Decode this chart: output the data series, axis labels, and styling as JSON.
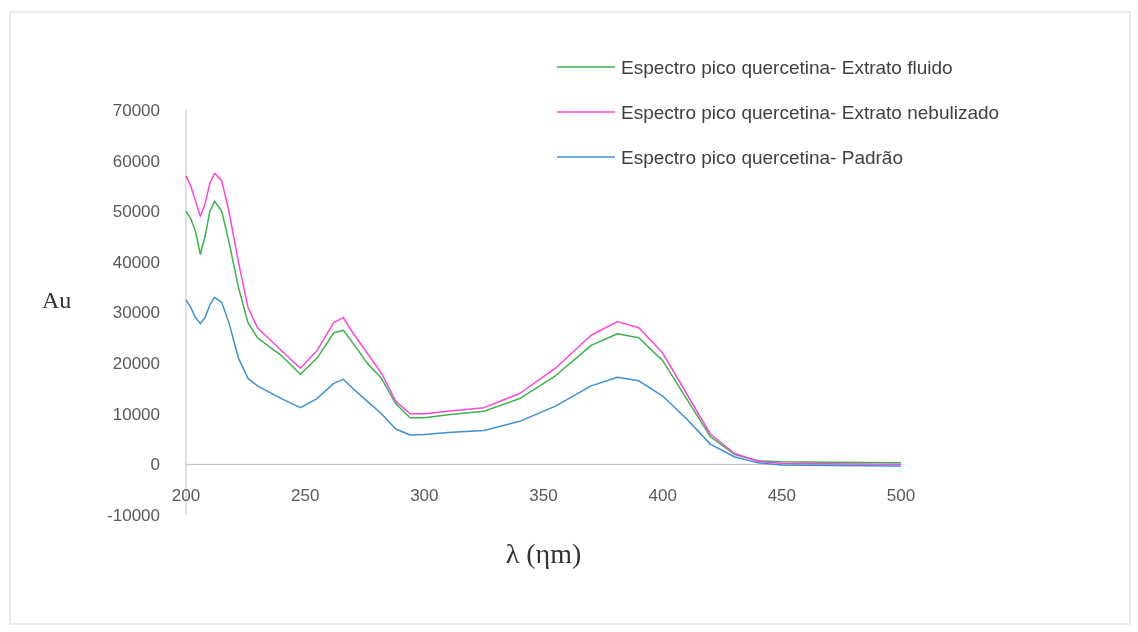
{
  "chart_data": {
    "type": "line",
    "xlabel": "λ (ηm)",
    "ylabel": "Au",
    "xlim": [
      200,
      500
    ],
    "xticks": [
      200,
      250,
      300,
      350,
      400,
      450,
      500
    ],
    "ylim": [
      -10000,
      70000
    ],
    "yticks": [
      -10000,
      0,
      10000,
      20000,
      30000,
      40000,
      50000,
      60000,
      70000
    ],
    "grid": false,
    "legend": "top right",
    "marker": "none",
    "line_style": "solid",
    "x": [
      200,
      202,
      204,
      206,
      208,
      210,
      212,
      215,
      218,
      222,
      226,
      230,
      240,
      248,
      255,
      262,
      266,
      270,
      276,
      282,
      288,
      294,
      300,
      310,
      325,
      340,
      355,
      370,
      381,
      390,
      400,
      410,
      420,
      430,
      440,
      450,
      470,
      500
    ],
    "series": [
      {
        "name": "Espectro pico quercetina- Extrato fluido",
        "color": "#3cb44b",
        "values": [
          50000,
          48500,
          46000,
          41500,
          45000,
          50000,
          52000,
          50000,
          44000,
          35000,
          28000,
          25000,
          21500,
          17800,
          21000,
          26000,
          26500,
          24000,
          20000,
          17000,
          12000,
          9200,
          9200,
          9800,
          10500,
          13000,
          17500,
          23500,
          25800,
          25000,
          20500,
          13000,
          5500,
          2000,
          700,
          500,
          400,
          300
        ]
      },
      {
        "name": "Espectro pico quercetina- Extrato nebulizado",
        "color": "#ff44dd",
        "values": [
          57000,
          55000,
          52000,
          49000,
          51500,
          55500,
          57500,
          56000,
          50000,
          40000,
          31000,
          27000,
          22500,
          19000,
          22500,
          28000,
          29000,
          26000,
          22000,
          18000,
          12500,
          10000,
          10000,
          10500,
          11200,
          14000,
          19000,
          25500,
          28200,
          27000,
          22000,
          14000,
          6000,
          2200,
          600,
          200,
          100,
          0
        ]
      },
      {
        "name": "Espectro pico quercetina- Padrão",
        "color": "#3d8fd6",
        "values": [
          32500,
          31000,
          29000,
          27800,
          29000,
          31500,
          33000,
          32000,
          28000,
          21000,
          17000,
          15500,
          13000,
          11200,
          13000,
          16000,
          16800,
          15000,
          12500,
          10000,
          7000,
          5800,
          5900,
          6300,
          6700,
          8500,
          11500,
          15500,
          17200,
          16500,
          13500,
          9000,
          4000,
          1500,
          300,
          -100,
          -200,
          -300
        ]
      }
    ]
  }
}
